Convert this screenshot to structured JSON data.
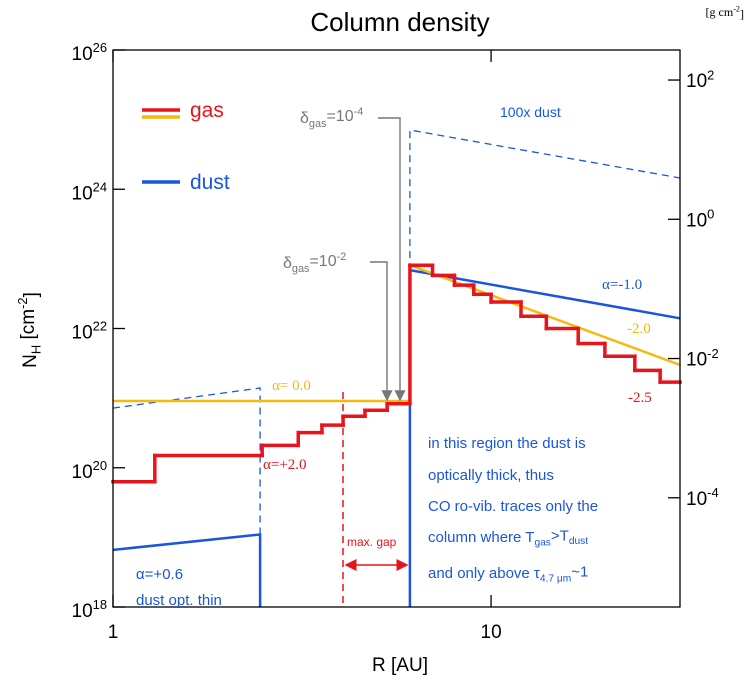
{
  "chart_data": {
    "type": "line",
    "title": "Column density",
    "xlabel": "R [AU]",
    "ylabel": [
      {
        "text": "N"
      },
      {
        "text": "H",
        "style": "sub"
      },
      {
        "text": " [cm"
      },
      {
        "text": "-2",
        "style": "sup"
      },
      {
        "text": "]"
      }
    ],
    "y2label": [
      {
        "text": "[g cm"
      },
      {
        "text": "-2",
        "style": "sup"
      },
      {
        "text": "]"
      }
    ],
    "xscale": "log",
    "yscale": "log",
    "y2scale": "log",
    "xlim": [
      1,
      31.6
    ],
    "xticks": [
      1,
      10
    ],
    "ylim": [
      1e+18,
      1e+26
    ],
    "yticks": [
      {
        "value": 1e+18,
        "label": "10",
        "exponent": "18"
      },
      {
        "value": 1e+20,
        "label": "10",
        "exponent": "20"
      },
      {
        "value": 1e+22,
        "label": "10",
        "exponent": "22"
      },
      {
        "value": 1e+24,
        "label": "10",
        "exponent": "24"
      },
      {
        "value": 1e+26,
        "label": "10",
        "exponent": "26"
      }
    ],
    "y2lim": [
      2.7e-06,
      270
    ],
    "y2ticks": [
      {
        "value": 0.0001,
        "label": "10",
        "exponent": "-4"
      },
      {
        "value": 0.01,
        "label": "10",
        "exponent": "-2"
      },
      {
        "value": 1,
        "label": "10",
        "exponent": "0"
      },
      {
        "value": 100,
        "label": "10",
        "exponent": "2"
      }
    ],
    "legend": "upper left",
    "series": [
      {
        "name": "gas",
        "color": "#e8141b",
        "drawstyle": "steps-post",
        "x": [
          1,
          1.29,
          2.48,
          3.09,
          3.57,
          4.06,
          4.64,
          5.31,
          6.1,
          7.0,
          8.0,
          9.0,
          10,
          12,
          14,
          17,
          20,
          24,
          28
        ],
        "values": [
          6.3e+19,
          1.5e+20,
          2.1e+20,
          3.2e+20,
          4.1e+20,
          5.5e+20,
          6.7e+20,
          8.3e+20,
          8.1e+22,
          5.8e+22,
          4.2e+22,
          3.1e+22,
          2.4e+22,
          1.5e+22,
          1e+22,
          6.1e+21,
          4e+21,
          2.5e+21,
          1.7e+21
        ]
      },
      {
        "color": "#f5b90f",
        "x": [
          1,
          6.1,
          6.1,
          31.6
        ],
        "values": [
          9.1e+20,
          9.1e+20,
          8.1e+22,
          3e+21
        ]
      },
      {
        "name": "dust",
        "color": "#1a55e0",
        "x": [
          1,
          2.45,
          2.45,
          null,
          6.1,
          6.1,
          31.6
        ],
        "values": [
          6.6e+18,
          1.1e+19,
          1e+18,
          null,
          1e+18,
          6.9e+22,
          1.4e+22
        ]
      },
      {
        "color": "#1a55e0",
        "linestyle": "dashed",
        "x": [
          1,
          2.45,
          2.45,
          null,
          6.1,
          6.1,
          31.6
        ],
        "values": [
          7.2e+20,
          1.4e+21,
          1.1e+19,
          null,
          6.9e+22,
          7.1e+24,
          1.45e+24
        ]
      }
    ],
    "annotations": [
      {
        "color": "#1a55e0",
        "parts": [
          {
            "text": "100x dust"
          }
        ]
      },
      {
        "color": "#1a55e0",
        "parts": [
          {
            "text": "α=-1.0"
          }
        ]
      },
      {
        "color": "#f5b90f",
        "parts": [
          {
            "text": "-2.0"
          }
        ]
      },
      {
        "color": "#e8141b",
        "parts": [
          {
            "text": "-2.5"
          }
        ]
      },
      {
        "color": "#f5b90f",
        "parts": [
          {
            "text": "α= 0.0"
          }
        ]
      },
      {
        "color": "#e8141b",
        "parts": [
          {
            "text": "α=+2.0"
          }
        ]
      },
      {
        "color": "#e8141b",
        "parts": [
          {
            "text": "max. gap"
          }
        ]
      },
      {
        "color": "#1a55e0",
        "parts": [
          {
            "text": "α=+0.6"
          }
        ]
      },
      {
        "color": "#1a55e0",
        "parts": [
          {
            "text": "dust opt. thin"
          }
        ]
      },
      {
        "color": "#1a55e0",
        "parts": [
          {
            "text": "in this region the dust is"
          }
        ]
      },
      {
        "color": "#1a55e0",
        "parts": [
          {
            "text": "optically thick, thus"
          }
        ]
      },
      {
        "color": "#1a55e0",
        "parts": [
          {
            "text": "CO ro-vib. traces only the"
          }
        ]
      },
      {
        "color": "#1a55e0",
        "parts": [
          {
            "text": "column where T"
          },
          {
            "text": "gas",
            "style": "sub"
          },
          {
            "text": ">T"
          },
          {
            "text": "dust",
            "style": "sub"
          }
        ]
      },
      {
        "color": "#1a55e0",
        "parts": [
          {
            "text": "and only above τ"
          },
          {
            "text": "4.7 μm",
            "style": "sub"
          },
          {
            "text": "~1"
          }
        ]
      },
      {
        "color": "#777777",
        "parts": [
          {
            "text": "δ"
          },
          {
            "text": "gas",
            "style": "sub"
          },
          {
            "text": "=10"
          },
          {
            "text": "-4",
            "style": "sup"
          }
        ]
      },
      {
        "color": "#777777",
        "parts": [
          {
            "text": "δ"
          },
          {
            "text": "gas",
            "style": "sub"
          },
          {
            "text": "=10"
          },
          {
            "text": "-2",
            "style": "sup"
          }
        ]
      }
    ]
  }
}
